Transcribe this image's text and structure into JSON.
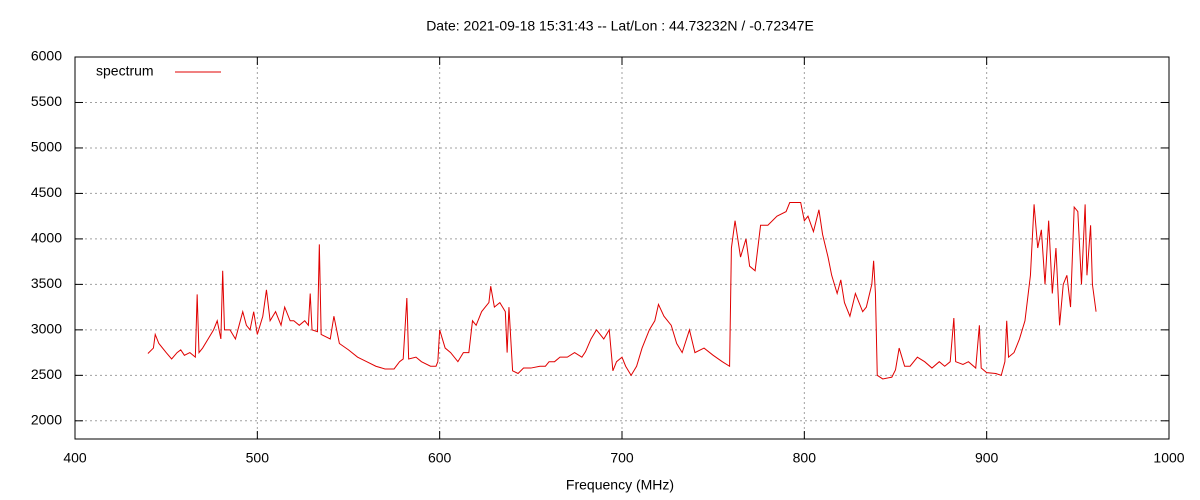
{
  "chart_data": {
    "type": "line",
    "title": "Date: 2021-09-18 15:31:43  --  Lat/Lon : 44.73232N / -0.72347E",
    "x_label": "Frequency (MHz)",
    "xlim": [
      400,
      1000
    ],
    "xticks": [
      400,
      500,
      600,
      700,
      800,
      900,
      1000
    ],
    "ylim": [
      1800,
      6000
    ],
    "yticks": [
      2000,
      2500,
      3000,
      3500,
      4000,
      4500,
      5000,
      5500,
      6000
    ],
    "grid": true,
    "legend": "top-left",
    "series": [
      {
        "name": "spectrum",
        "color": "#e00000",
        "x": [
          440,
          443,
          444,
          446,
          450,
          453,
          456,
          458,
          460,
          463,
          466,
          467,
          468,
          470,
          473,
          476,
          478,
          480,
          481,
          482,
          485,
          488,
          490,
          492,
          494,
          496,
          498,
          500,
          503,
          505,
          507,
          510,
          513,
          515,
          518,
          520,
          523,
          526,
          528,
          529,
          530,
          533,
          534,
          535,
          540,
          542,
          545,
          550,
          555,
          560,
          565,
          570,
          575,
          578,
          580,
          582,
          583,
          587,
          590,
          595,
          598,
          599,
          600,
          603,
          606,
          610,
          613,
          616,
          618,
          620,
          623,
          625,
          627,
          628,
          630,
          633,
          636,
          637,
          638,
          640,
          643,
          646,
          650,
          655,
          658,
          660,
          663,
          666,
          670,
          674,
          678,
          680,
          683,
          686,
          690,
          693,
          695,
          697,
          700,
          702,
          705,
          708,
          711,
          715,
          718,
          720,
          723,
          727,
          730,
          733,
          737,
          740,
          745,
          750,
          755,
          759,
          760,
          762,
          765,
          768,
          770,
          773,
          776,
          780,
          785,
          790,
          792,
          798,
          800,
          802,
          805,
          808,
          810,
          813,
          815,
          818,
          820,
          822,
          825,
          828,
          832,
          834,
          837,
          838,
          839,
          840,
          843,
          848,
          850,
          852,
          855,
          858,
          862,
          866,
          870,
          874,
          877,
          880,
          882,
          883,
          887,
          890,
          894,
          896,
          897,
          900,
          905,
          908,
          910,
          911,
          912,
          915,
          918,
          921,
          924,
          926,
          928,
          930,
          932,
          934,
          936,
          938,
          940,
          942,
          944,
          946,
          948,
          950,
          952,
          954,
          955,
          957,
          958,
          960
        ],
        "values": [
          2740,
          2800,
          2950,
          2850,
          2750,
          2680,
          2750,
          2780,
          2720,
          2750,
          2700,
          3390,
          2750,
          2800,
          2900,
          3000,
          3100,
          2900,
          3650,
          3000,
          3000,
          2900,
          3050,
          3200,
          3050,
          3000,
          3200,
          2950,
          3150,
          3440,
          3100,
          3200,
          3050,
          3250,
          3100,
          3100,
          3050,
          3100,
          3050,
          3400,
          3000,
          2980,
          3940,
          2950,
          2900,
          3150,
          2850,
          2780,
          2700,
          2650,
          2600,
          2570,
          2570,
          2650,
          2680,
          3350,
          2680,
          2700,
          2650,
          2600,
          2600,
          2650,
          3000,
          2800,
          2750,
          2650,
          2750,
          2750,
          3100,
          3050,
          3200,
          3250,
          3300,
          3480,
          3250,
          3300,
          3200,
          2750,
          3250,
          2550,
          2520,
          2580,
          2580,
          2600,
          2600,
          2650,
          2650,
          2700,
          2700,
          2750,
          2700,
          2760,
          2900,
          3000,
          2900,
          3000,
          2550,
          2650,
          2700,
          2600,
          2500,
          2600,
          2800,
          3000,
          3100,
          3280,
          3150,
          3050,
          2850,
          2750,
          3000,
          2750,
          2800,
          2720,
          2650,
          2600,
          3900,
          4200,
          3800,
          4000,
          3700,
          3650,
          4150,
          4150,
          4250,
          4300,
          4400,
          4400,
          4200,
          4250,
          4080,
          4320,
          4050,
          3800,
          3600,
          3400,
          3550,
          3300,
          3150,
          3400,
          3200,
          3250,
          3500,
          3760,
          3400,
          2500,
          2460,
          2480,
          2560,
          2800,
          2600,
          2600,
          2700,
          2650,
          2580,
          2650,
          2600,
          2650,
          3130,
          2650,
          2620,
          2650,
          2580,
          3050,
          2580,
          2530,
          2520,
          2500,
          2650,
          3100,
          2700,
          2750,
          2900,
          3100,
          3600,
          4380,
          3900,
          4100,
          3500,
          4200,
          3400,
          3900,
          3050,
          3500,
          3600,
          3250,
          4350,
          4300,
          3500,
          4380,
          3600,
          4150,
          3500,
          3200
        ]
      }
    ]
  }
}
